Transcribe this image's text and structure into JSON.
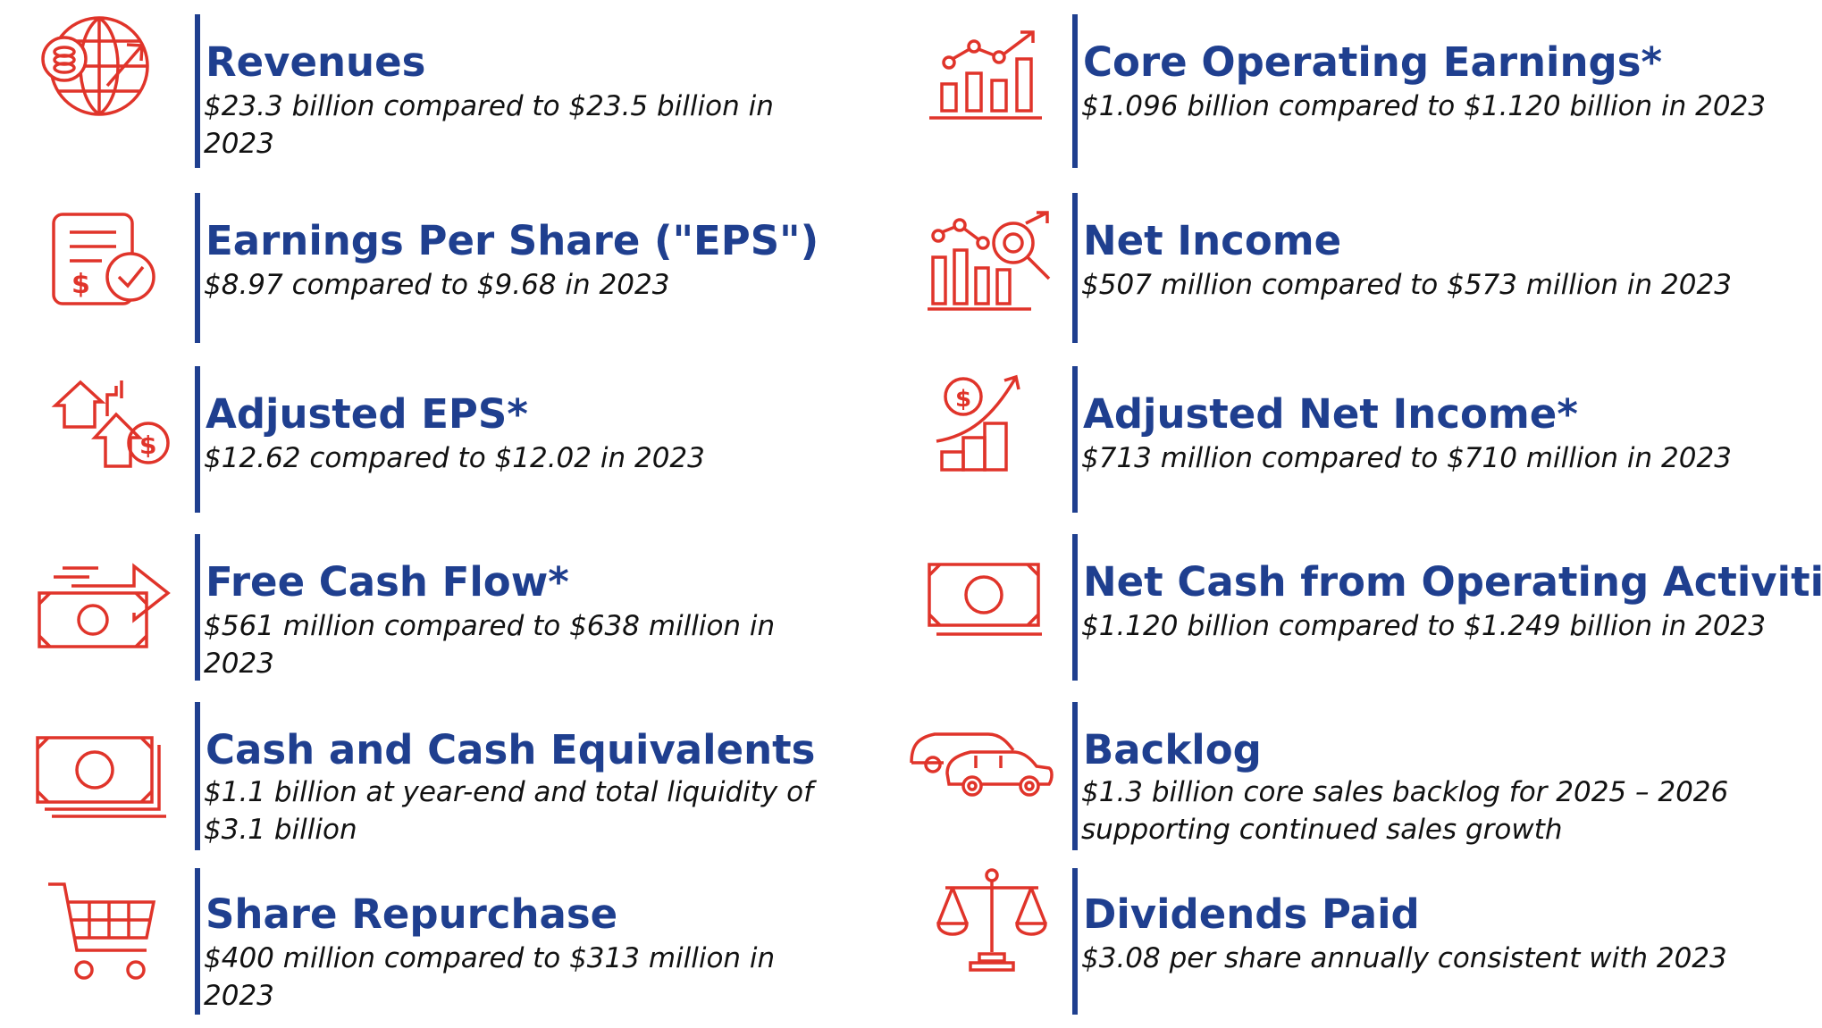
{
  "metrics_left": [
    {
      "title": "Revenues",
      "desc": "$23.3 billion compared to $23.5 billion in 2023",
      "icon": "globe-growth-icon"
    },
    {
      "title": "Earnings Per Share (\"EPS\")",
      "desc": "$8.97 compared to $9.68 in 2023",
      "icon": "document-dollar-check-icon"
    },
    {
      "title": "Adjusted EPS*",
      "desc": "$12.62 compared to $12.02 in 2023",
      "icon": "house-arrows-dollar-icon"
    },
    {
      "title": "Free Cash Flow*",
      "desc": "$561 million compared to $638 million in 2023",
      "icon": "cash-arrow-icon"
    },
    {
      "title": "Cash and Cash Equivalents",
      "desc": "$1.1 billion at year-end and total liquidity of $3.1 billion",
      "icon": "cash-stack-icon"
    },
    {
      "title": "Share Repurchase",
      "desc": "$400 million compared to $313 million in 2023",
      "icon": "shopping-cart-icon"
    }
  ],
  "metrics_right": [
    {
      "title": "Core Operating Earnings*",
      "desc": "$1.096 billion compared to $1.120 billion in 2023",
      "icon": "bar-chart-trend-icon"
    },
    {
      "title": "Net Income",
      "desc": "$507 million compared to $573 million in 2023",
      "icon": "chart-magnifier-icon"
    },
    {
      "title": "Adjusted Net Income*",
      "desc": "$713 million compared to $710 million in 2023",
      "icon": "dollar-growth-steps-icon"
    },
    {
      "title": "Net Cash from Operating Activities",
      "desc": "$1.120 billion compared to $1.249 billion in 2023",
      "icon": "banknote-icon"
    },
    {
      "title": "Backlog",
      "desc": "$1.3 billion core sales backlog for 2025 – 2026 supporting continued sales growth",
      "icon": "cars-icon"
    },
    {
      "title": "Dividends Paid",
      "desc": "$3.08 per share annually consistent with 2023",
      "icon": "balance-scale-icon"
    }
  ],
  "colors": {
    "title": "#1f3f8f",
    "bar": "#1f3f8f",
    "icon": "#e0342a",
    "text": "#111111"
  }
}
